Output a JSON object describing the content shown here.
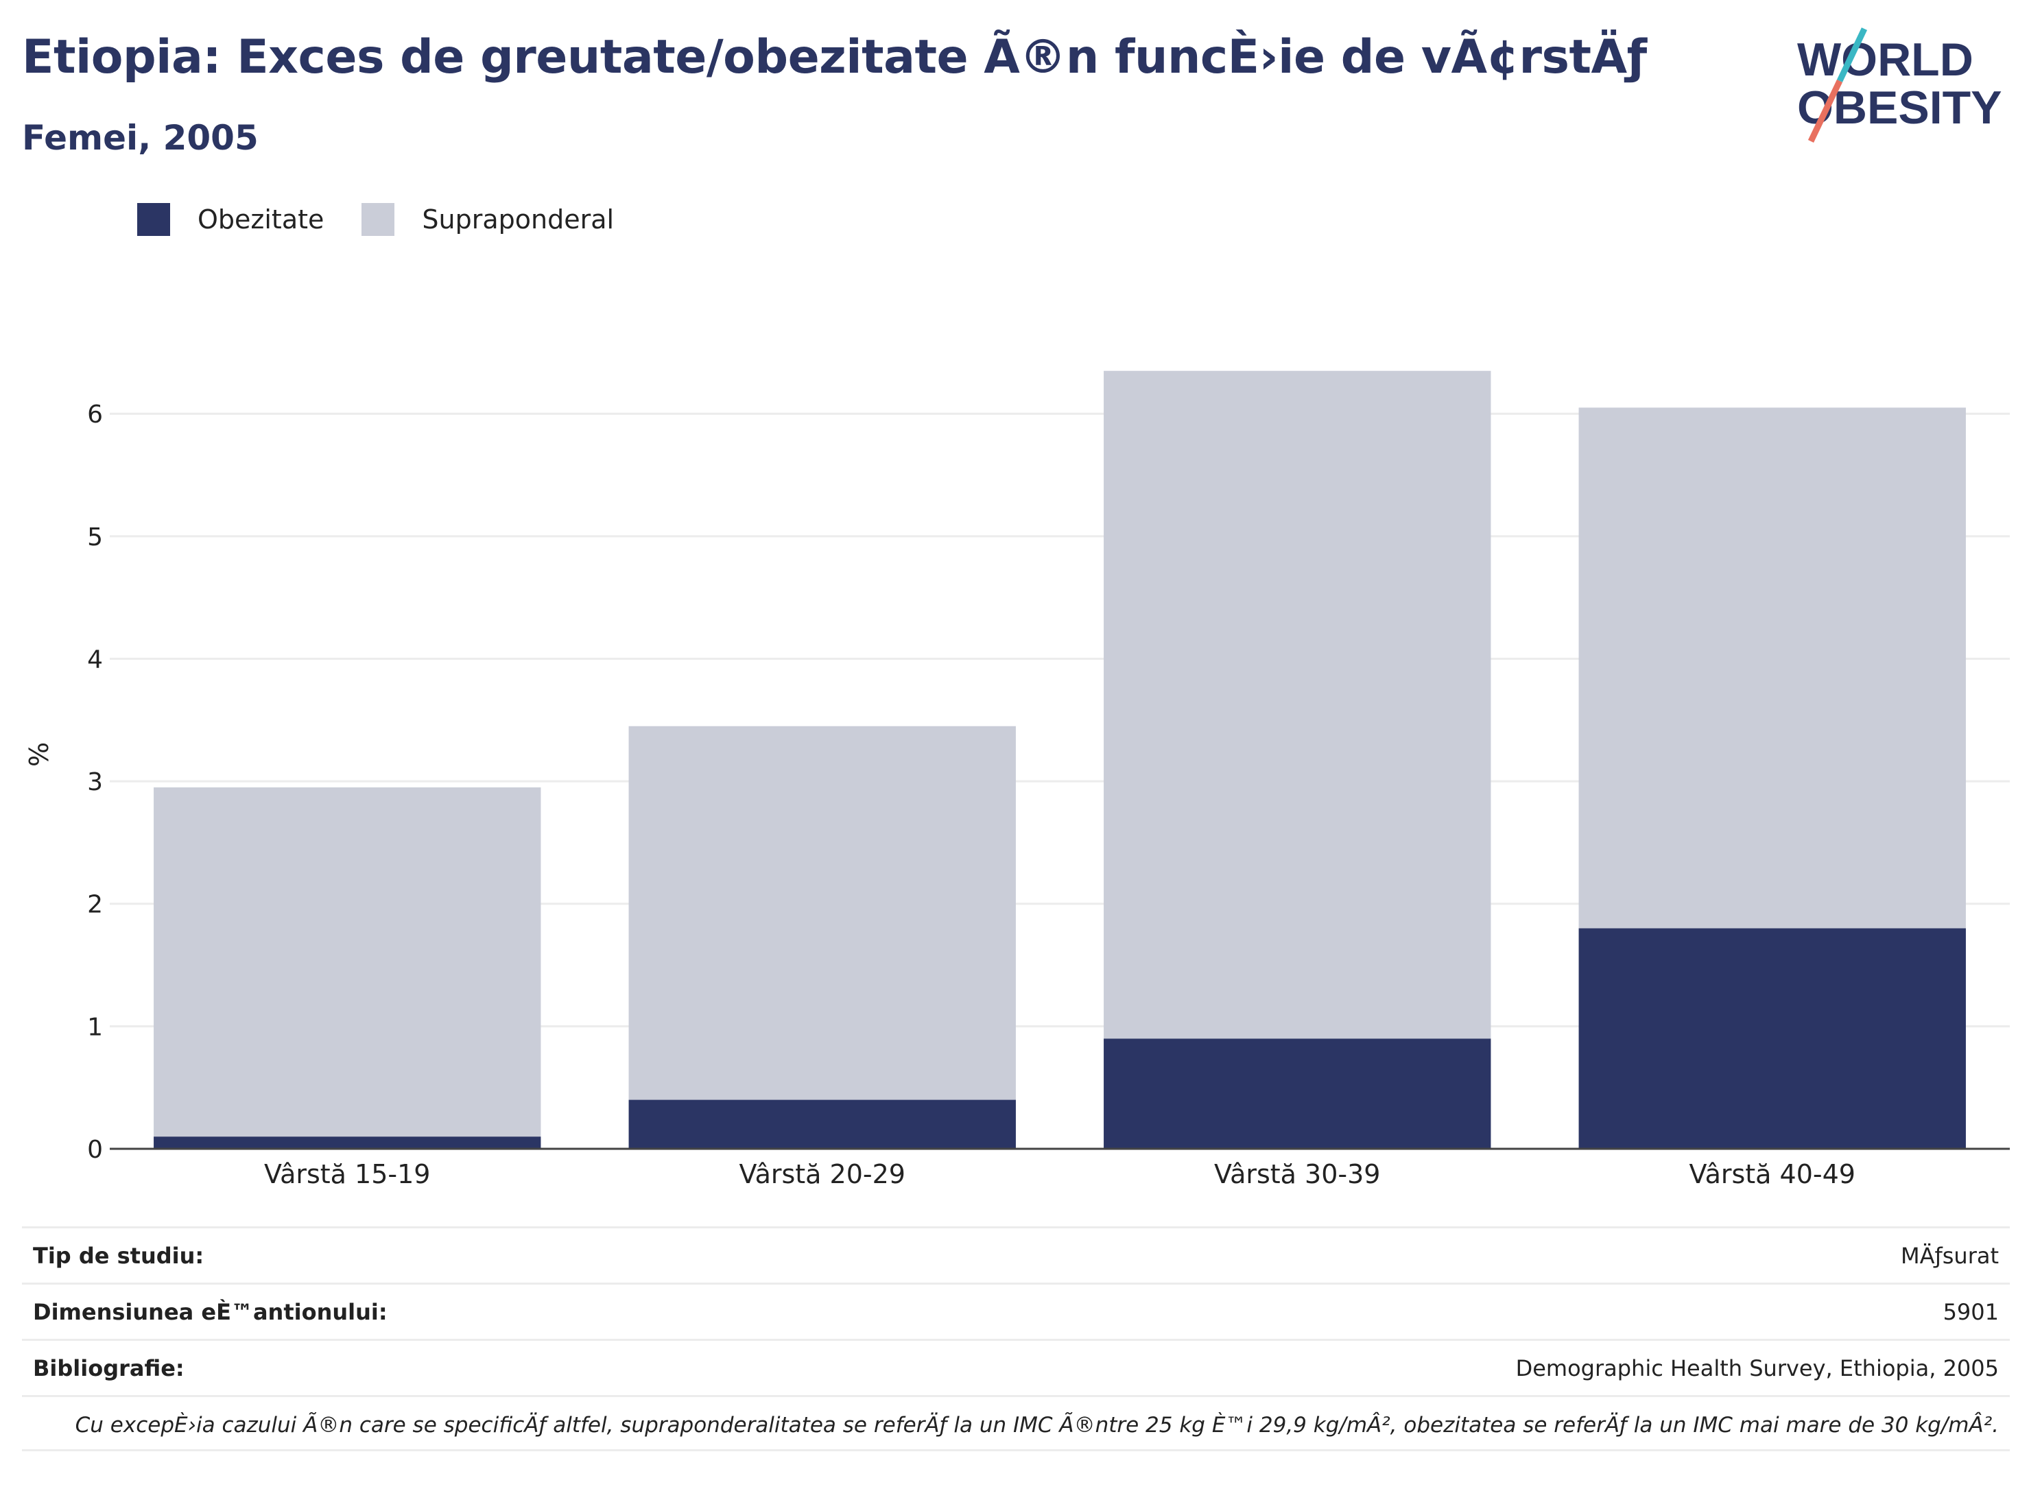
{
  "header": {
    "title": "Etiopia: Exces de greutate/obezitate Ã®n funcÈ›ie de vÃ¢rstÄƒ",
    "subtitle": "Femei, 2005"
  },
  "logo": {
    "line1": "WORLD",
    "line2": "OBESITY"
  },
  "colors": {
    "obesity": "#2b3564",
    "overweight": "#cacdd8",
    "title": "#2b3562"
  },
  "legend": [
    {
      "label": "Obezitate",
      "color": "#2b3564"
    },
    {
      "label": "Supraponderal",
      "color": "#cacdd8"
    }
  ],
  "chart_data": {
    "type": "bar",
    "stacked": true,
    "categories": [
      "Vârstă 15-19",
      "Vârstă 20-29",
      "Vârstă 30-39",
      "Vârstă 40-49"
    ],
    "series": [
      {
        "name": "Obezitate",
        "values": [
          0.1,
          0.4,
          0.9,
          1.8
        ]
      },
      {
        "name": "Supraponderal",
        "values": [
          2.85,
          3.05,
          5.45,
          4.25
        ]
      }
    ],
    "ylabel": "%",
    "yticks": [
      0,
      1,
      2,
      3,
      4,
      5,
      6
    ],
    "ylim": [
      0,
      6.55
    ],
    "grid": true,
    "legend_position": "top-left"
  },
  "info": {
    "rows": [
      {
        "label": "Tip de studiu:",
        "value": "MÄƒsurat"
      },
      {
        "label": "Dimensiunea eÈ™antionului:",
        "value": "5901"
      },
      {
        "label": "Bibliografie:",
        "value": "Demographic Health Survey, Ethiopia, 2005"
      }
    ],
    "note": "Cu excepÈ›ia cazului Ã®n care se specificÄƒ altfel, supraponderalitatea se referÄƒ la un IMC Ã®ntre 25 kg È™i 29,9 kg/mÂ², obezitatea se referÄƒ la un IMC mai mare de 30 kg/mÂ²."
  }
}
